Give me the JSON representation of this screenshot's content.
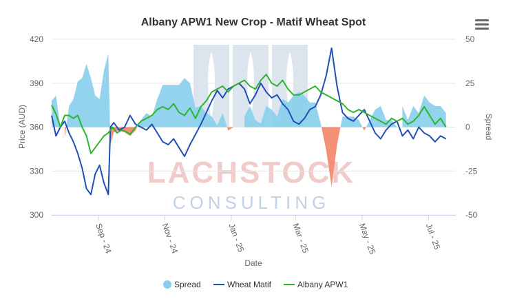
{
  "chart_data": {
    "type": "line",
    "title": "Albany APW1 New Crop - Matif Wheat Spot",
    "xlabel": "Date",
    "ylabel_left": "Price (AUD)",
    "ylabel_right": "Spread",
    "left_axis": {
      "min": 300,
      "max": 420,
      "ticks": [
        300,
        330,
        360,
        390,
        420
      ]
    },
    "right_axis": {
      "min": -50,
      "max": 50,
      "ticks": [
        -50,
        -25,
        0,
        25,
        50
      ]
    },
    "x_range": [
      "2024-07-20",
      "2025-07-26"
    ],
    "x_ticks": [
      {
        "date": "2024-09-01",
        "label": "Sep - 24"
      },
      {
        "date": "2024-11-01",
        "label": "Nov - 24"
      },
      {
        "date": "2025-01-01",
        "label": "Jan - 25"
      },
      {
        "date": "2025-03-01",
        "label": "Mar - 25"
      },
      {
        "date": "2025-05-01",
        "label": "May - 25"
      },
      {
        "date": "2025-07-01",
        "label": "Jul - 25"
      }
    ],
    "legend_position": "bottom-center",
    "grid": "horizontal",
    "colors": {
      "spread_positive": "#87ceeb",
      "spread_negative": "#f28a70",
      "wheat_matif": "#1f4fb4",
      "albany_apw1": "#2db52d"
    },
    "series": [
      {
        "name": "Wheat Matif",
        "axis": "left",
        "data": [
          [
            "2024-07-20",
            368
          ],
          [
            "2024-07-24",
            354
          ],
          [
            "2024-07-28",
            360
          ],
          [
            "2024-08-01",
            364
          ],
          [
            "2024-08-05",
            356
          ],
          [
            "2024-08-09",
            350
          ],
          [
            "2024-08-13",
            342
          ],
          [
            "2024-08-17",
            332
          ],
          [
            "2024-08-21",
            318
          ],
          [
            "2024-08-25",
            314
          ],
          [
            "2024-08-29",
            328
          ],
          [
            "2024-09-02",
            334
          ],
          [
            "2024-09-06",
            322
          ],
          [
            "2024-09-10",
            314
          ],
          [
            "2024-09-12",
            360
          ],
          [
            "2024-09-15",
            363
          ],
          [
            "2024-09-20",
            358
          ],
          [
            "2024-09-25",
            360
          ],
          [
            "2024-09-30",
            368
          ],
          [
            "2024-10-05",
            362
          ],
          [
            "2024-10-10",
            360
          ],
          [
            "2024-10-15",
            358
          ],
          [
            "2024-10-20",
            362
          ],
          [
            "2024-10-25",
            356
          ],
          [
            "2024-10-30",
            350
          ],
          [
            "2024-11-04",
            348
          ],
          [
            "2024-11-09",
            352
          ],
          [
            "2024-11-14",
            346
          ],
          [
            "2024-11-19",
            340
          ],
          [
            "2024-11-24",
            348
          ],
          [
            "2024-11-29",
            355
          ],
          [
            "2024-12-04",
            362
          ],
          [
            "2024-12-09",
            370
          ],
          [
            "2024-12-14",
            378
          ],
          [
            "2024-12-19",
            385
          ],
          [
            "2024-12-24",
            380
          ],
          [
            "2024-12-29",
            386
          ],
          [
            "2025-01-03",
            388
          ],
          [
            "2025-01-08",
            390
          ],
          [
            "2025-01-13",
            386
          ],
          [
            "2025-01-18",
            376
          ],
          [
            "2025-01-23",
            382
          ],
          [
            "2025-01-28",
            390
          ],
          [
            "2025-02-02",
            384
          ],
          [
            "2025-02-07",
            380
          ],
          [
            "2025-02-12",
            382
          ],
          [
            "2025-02-17",
            376
          ],
          [
            "2025-02-22",
            372
          ],
          [
            "2025-02-27",
            364
          ],
          [
            "2025-03-04",
            362
          ],
          [
            "2025-03-09",
            366
          ],
          [
            "2025-03-14",
            372
          ],
          [
            "2025-03-19",
            374
          ],
          [
            "2025-03-24",
            382
          ],
          [
            "2025-03-29",
            395
          ],
          [
            "2025-04-03",
            414
          ],
          [
            "2025-04-08",
            388
          ],
          [
            "2025-04-13",
            370
          ],
          [
            "2025-04-18",
            366
          ],
          [
            "2025-04-23",
            364
          ],
          [
            "2025-04-28",
            368
          ],
          [
            "2025-05-03",
            372
          ],
          [
            "2025-05-08",
            364
          ],
          [
            "2025-05-13",
            356
          ],
          [
            "2025-05-18",
            352
          ],
          [
            "2025-05-23",
            358
          ],
          [
            "2025-05-28",
            362
          ],
          [
            "2025-06-02",
            364
          ],
          [
            "2025-06-07",
            354
          ],
          [
            "2025-06-12",
            358
          ],
          [
            "2025-06-17",
            352
          ],
          [
            "2025-06-22",
            360
          ],
          [
            "2025-06-27",
            356
          ],
          [
            "2025-07-02",
            354
          ],
          [
            "2025-07-07",
            350
          ],
          [
            "2025-07-12",
            354
          ],
          [
            "2025-07-17",
            352
          ]
        ]
      },
      {
        "name": "Albany APW1",
        "axis": "left",
        "data": [
          [
            "2024-07-20",
            375
          ],
          [
            "2024-07-24",
            369
          ],
          [
            "2024-07-28",
            360
          ],
          [
            "2024-08-01",
            368
          ],
          [
            "2024-08-05",
            368
          ],
          [
            "2024-08-09",
            366
          ],
          [
            "2024-08-13",
            368
          ],
          [
            "2024-08-17",
            360
          ],
          [
            "2024-08-21",
            354
          ],
          [
            "2024-08-25",
            342
          ],
          [
            "2024-08-29",
            346
          ],
          [
            "2024-09-02",
            350
          ],
          [
            "2024-09-06",
            354
          ],
          [
            "2024-09-10",
            356
          ],
          [
            "2024-09-14",
            360
          ],
          [
            "2024-09-18",
            356
          ],
          [
            "2024-09-22",
            358
          ],
          [
            "2024-09-26",
            357
          ],
          [
            "2024-09-30",
            355
          ],
          [
            "2024-10-05",
            360
          ],
          [
            "2024-10-10",
            364
          ],
          [
            "2024-10-15",
            366
          ],
          [
            "2024-10-20",
            368
          ],
          [
            "2024-10-25",
            372
          ],
          [
            "2024-10-30",
            374
          ],
          [
            "2024-11-04",
            372
          ],
          [
            "2024-11-09",
            376
          ],
          [
            "2024-11-14",
            370
          ],
          [
            "2024-11-19",
            368
          ],
          [
            "2024-11-24",
            373
          ],
          [
            "2024-11-29",
            366
          ],
          [
            "2024-12-04",
            374
          ],
          [
            "2024-12-09",
            378
          ],
          [
            "2024-12-14",
            384
          ],
          [
            "2024-12-19",
            386
          ],
          [
            "2024-12-24",
            388
          ],
          [
            "2024-12-29",
            384
          ],
          [
            "2025-01-03",
            388
          ],
          [
            "2025-01-08",
            390
          ],
          [
            "2025-01-13",
            392
          ],
          [
            "2025-01-18",
            388
          ],
          [
            "2025-01-23",
            386
          ],
          [
            "2025-01-28",
            392
          ],
          [
            "2025-02-02",
            396
          ],
          [
            "2025-02-07",
            390
          ],
          [
            "2025-02-12",
            388
          ],
          [
            "2025-02-17",
            392
          ],
          [
            "2025-02-22",
            386
          ],
          [
            "2025-02-27",
            382
          ],
          [
            "2025-03-04",
            382
          ],
          [
            "2025-03-09",
            384
          ],
          [
            "2025-03-14",
            386
          ],
          [
            "2025-03-19",
            388
          ],
          [
            "2025-03-24",
            384
          ],
          [
            "2025-03-29",
            382
          ],
          [
            "2025-04-03",
            380
          ],
          [
            "2025-04-08",
            378
          ],
          [
            "2025-04-13",
            376
          ],
          [
            "2025-04-18",
            372
          ],
          [
            "2025-04-23",
            370
          ],
          [
            "2025-04-28",
            372
          ],
          [
            "2025-05-03",
            370
          ],
          [
            "2025-05-08",
            368
          ],
          [
            "2025-05-13",
            366
          ],
          [
            "2025-05-18",
            364
          ],
          [
            "2025-05-23",
            362
          ],
          [
            "2025-05-28",
            366
          ],
          [
            "2025-06-02",
            364
          ],
          [
            "2025-06-07",
            366
          ],
          [
            "2025-06-12",
            362
          ],
          [
            "2025-06-17",
            364
          ],
          [
            "2025-06-22",
            368
          ],
          [
            "2025-06-27",
            374
          ],
          [
            "2025-07-02",
            368
          ],
          [
            "2025-07-07",
            362
          ],
          [
            "2025-07-12",
            366
          ],
          [
            "2025-07-17",
            360
          ]
        ]
      },
      {
        "name": "Spread",
        "axis": "right",
        "type": "area",
        "data": [
          [
            "2024-07-20",
            15
          ],
          [
            "2024-07-24",
            18
          ],
          [
            "2024-07-28",
            0
          ],
          [
            "2024-08-01",
            -6
          ],
          [
            "2024-08-05",
            12
          ],
          [
            "2024-08-09",
            16
          ],
          [
            "2024-08-13",
            26
          ],
          [
            "2024-08-17",
            28
          ],
          [
            "2024-08-21",
            36
          ],
          [
            "2024-08-25",
            28
          ],
          [
            "2024-08-29",
            18
          ],
          [
            "2024-09-02",
            16
          ],
          [
            "2024-09-06",
            32
          ],
          [
            "2024-09-10",
            42
          ],
          [
            "2024-09-12",
            -10
          ],
          [
            "2024-09-15",
            -3
          ],
          [
            "2024-09-20",
            -2
          ],
          [
            "2024-09-25",
            -3
          ],
          [
            "2024-09-30",
            -5
          ],
          [
            "2024-10-05",
            -2
          ],
          [
            "2024-10-10",
            4
          ],
          [
            "2024-10-15",
            8
          ],
          [
            "2024-10-20",
            6
          ],
          [
            "2024-10-25",
            16
          ],
          [
            "2024-10-30",
            24
          ],
          [
            "2024-11-04",
            24
          ],
          [
            "2024-11-09",
            24
          ],
          [
            "2024-11-14",
            24
          ],
          [
            "2024-11-19",
            28
          ],
          [
            "2024-11-24",
            25
          ],
          [
            "2024-11-29",
            11
          ],
          [
            "2024-12-04",
            12
          ],
          [
            "2024-12-09",
            8
          ],
          [
            "2024-12-14",
            6
          ],
          [
            "2024-12-19",
            1
          ],
          [
            "2024-12-24",
            8
          ],
          [
            "2024-12-29",
            -2
          ],
          [
            "2025-01-03",
            0
          ],
          [
            "2025-01-08",
            0
          ],
          [
            "2025-01-13",
            6
          ],
          [
            "2025-01-18",
            12
          ],
          [
            "2025-01-23",
            4
          ],
          [
            "2025-01-28",
            2
          ],
          [
            "2025-02-02",
            12
          ],
          [
            "2025-02-07",
            10
          ],
          [
            "2025-02-12",
            6
          ],
          [
            "2025-02-17",
            16
          ],
          [
            "2025-02-22",
            14
          ],
          [
            "2025-02-27",
            18
          ],
          [
            "2025-03-04",
            20
          ],
          [
            "2025-03-09",
            18
          ],
          [
            "2025-03-14",
            14
          ],
          [
            "2025-03-19",
            14
          ],
          [
            "2025-03-24",
            2
          ],
          [
            "2025-03-29",
            -13
          ],
          [
            "2025-04-03",
            -34
          ],
          [
            "2025-04-08",
            -10
          ],
          [
            "2025-04-13",
            6
          ],
          [
            "2025-04-18",
            6
          ],
          [
            "2025-04-23",
            6
          ],
          [
            "2025-04-28",
            4
          ],
          [
            "2025-05-03",
            -2
          ],
          [
            "2025-05-08",
            4
          ],
          [
            "2025-05-13",
            10
          ],
          [
            "2025-05-18",
            12
          ],
          [
            "2025-05-23",
            4
          ],
          [
            "2025-05-28",
            4
          ],
          [
            "2025-06-02",
            0
          ],
          [
            "2025-06-07",
            12
          ],
          [
            "2025-06-12",
            4
          ],
          [
            "2025-06-17",
            12
          ],
          [
            "2025-06-22",
            8
          ],
          [
            "2025-06-27",
            18
          ],
          [
            "2025-07-02",
            14
          ],
          [
            "2025-07-07",
            12
          ],
          [
            "2025-07-12",
            12
          ],
          [
            "2025-07-17",
            8
          ]
        ]
      }
    ],
    "legend": [
      "Spread",
      "Wheat Matif",
      "Albany APW1"
    ]
  },
  "watermark": {
    "line1": "LACHSTOCK",
    "line2": "CONSULTING"
  },
  "menu": {
    "icon": "hamburger-menu-icon"
  }
}
